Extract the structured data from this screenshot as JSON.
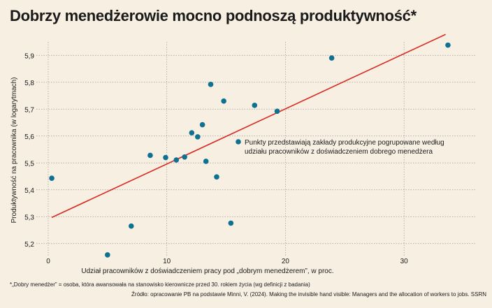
{
  "title": "Dobrzy menedżerowie mocno podnoszą produktywność*",
  "footnote": "*„Dobry menedżer” = osoba, która awansowała na stanowisko kierownicze przed 30. rokiem życia (wg definicji z badania)",
  "source": "Źródło: opracowanie PB na podstawie Minni, V. (2024). Making the invisible hand visible: Managers and the allocation of workers to jobs. SSRN",
  "colors": {
    "background": "#f8efe3",
    "point": "#0e7191",
    "trend": "#d92a22",
    "grid": "#9a9a9a"
  },
  "chart_data": {
    "type": "scatter",
    "xlabel": "Udział pracowników z doświadczeniem pracy pod „dobrym menedżerem”, w proc.",
    "ylabel": "Produktywność na pracownika (w logarytmach)",
    "xlim": [
      -1,
      36
    ],
    "ylim": [
      5.15,
      5.95
    ],
    "xticks": [
      0,
      10,
      20,
      30
    ],
    "yticks": [
      5.2,
      5.3,
      5.4,
      5.5,
      5.6,
      5.7,
      5.8,
      5.9
    ],
    "xtick_labels": [
      "0",
      "10",
      "20",
      "30"
    ],
    "ytick_labels": [
      "5,2",
      "5,3",
      "5,4",
      "5,5",
      "5,6",
      "5,7",
      "5,8",
      "5,9"
    ],
    "grid": true,
    "legend_text": "Punkty przedstawiają zakłady produkcyjne pogrupowane według udziału pracowników z doświadczeniem dobrego menedżera",
    "points": [
      {
        "x": 0.3,
        "y": 5.443
      },
      {
        "x": 5.0,
        "y": 5.158
      },
      {
        "x": 7.0,
        "y": 5.265
      },
      {
        "x": 8.6,
        "y": 5.528
      },
      {
        "x": 9.9,
        "y": 5.52
      },
      {
        "x": 10.8,
        "y": 5.511
      },
      {
        "x": 11.5,
        "y": 5.522
      },
      {
        "x": 12.1,
        "y": 5.612
      },
      {
        "x": 12.6,
        "y": 5.597
      },
      {
        "x": 13.0,
        "y": 5.642
      },
      {
        "x": 13.3,
        "y": 5.506
      },
      {
        "x": 13.7,
        "y": 5.792
      },
      {
        "x": 14.2,
        "y": 5.448
      },
      {
        "x": 14.8,
        "y": 5.73
      },
      {
        "x": 15.4,
        "y": 5.276
      },
      {
        "x": 17.4,
        "y": 5.714
      },
      {
        "x": 19.3,
        "y": 5.692
      },
      {
        "x": 23.9,
        "y": 5.89
      },
      {
        "x": 33.7,
        "y": 5.938
      }
    ],
    "trendline": {
      "x": [
        0.3,
        33.5
      ],
      "y": [
        5.297,
        5.978
      ]
    }
  }
}
